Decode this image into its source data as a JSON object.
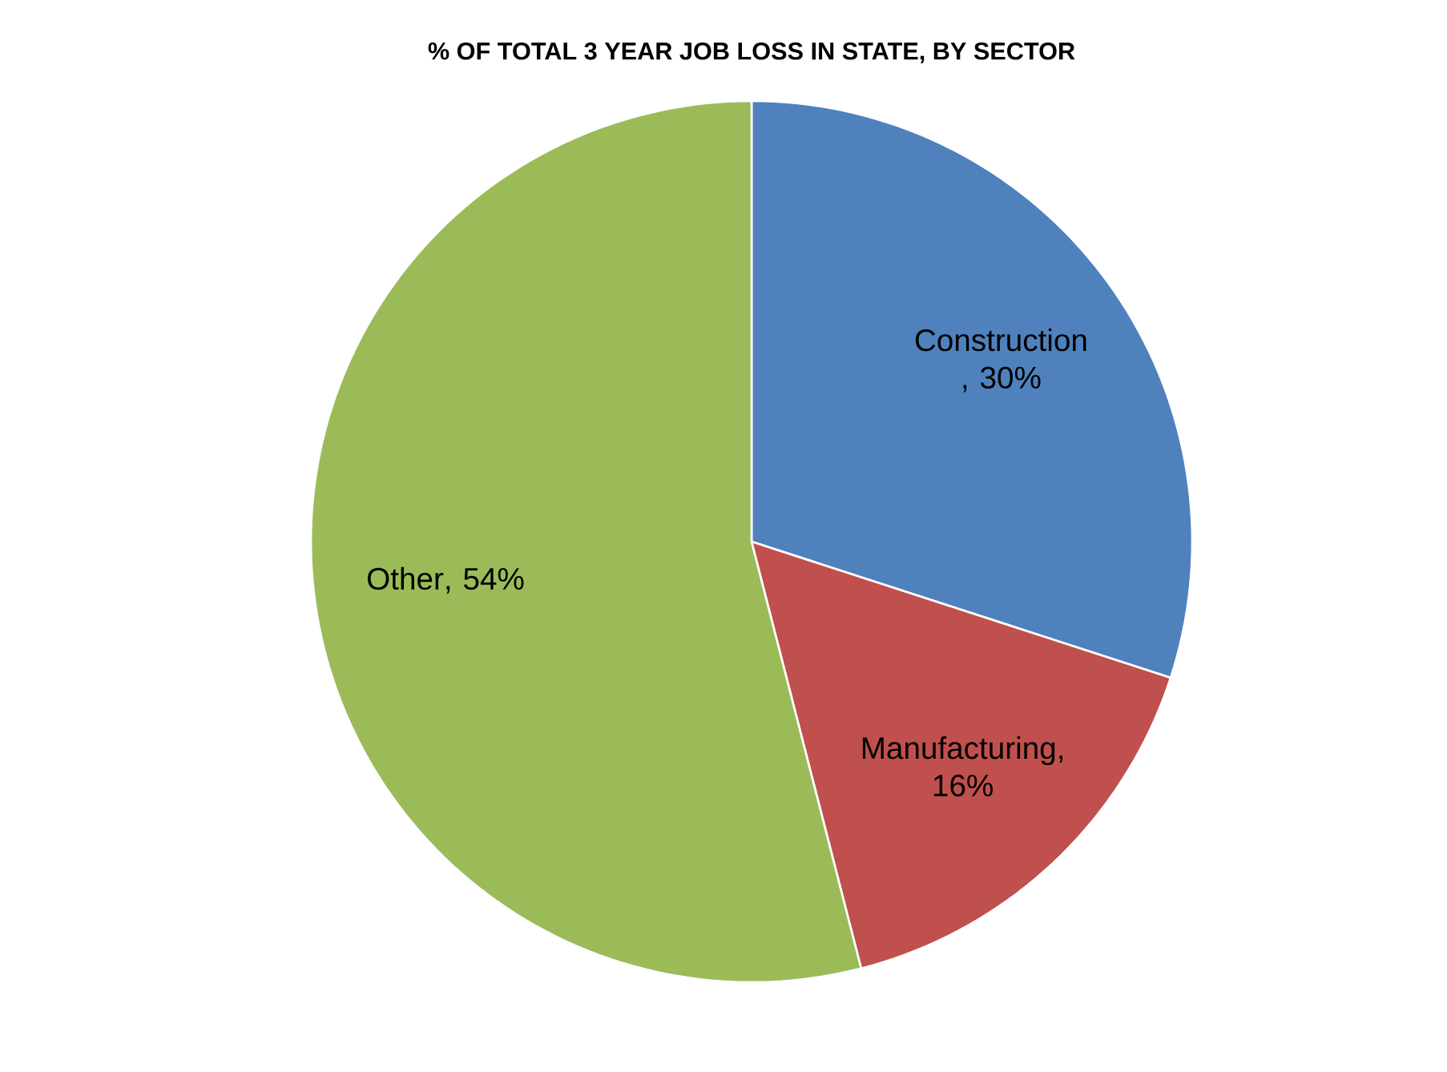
{
  "chart_data": {
    "type": "pie",
    "title": "% OF TOTAL 3 YEAR JOB LOSS IN STATE, BY SECTOR",
    "categories": [
      "Construction ",
      "Manufacturing",
      "Other"
    ],
    "values": [
      30,
      16,
      54
    ],
    "value_labels": [
      ", 30%",
      ", 16%",
      ", 54%"
    ],
    "colors": [
      "#4f81bd",
      "#c0504d",
      "#9bbb59"
    ],
    "data_labels": true
  }
}
